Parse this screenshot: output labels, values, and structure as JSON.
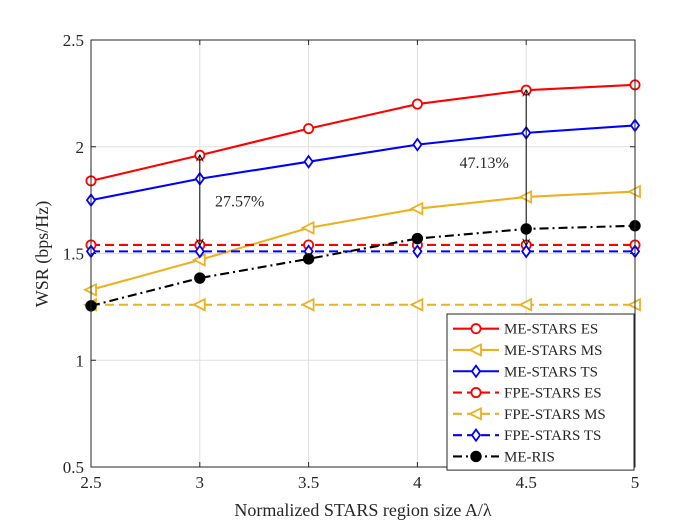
{
  "chart_data": {
    "type": "line",
    "title": "",
    "xlabel": "Normalized STARS region size A/λ",
    "ylabel": "WSR (bps/Hz)",
    "xlim": [
      2.5,
      5
    ],
    "ylim": [
      0.5,
      2.5
    ],
    "x_ticks": [
      "2.5",
      "3",
      "3.5",
      "4",
      "4.5",
      "5"
    ],
    "y_ticks": [
      "0.5",
      "1",
      "1.5",
      "2",
      "2.5"
    ],
    "grid": true,
    "legend_position": "bottom-right",
    "x": [
      2.5,
      3,
      3.5,
      4,
      4.5,
      5
    ],
    "series": [
      {
        "name": "ME-STARS ES",
        "color": "#ff0000",
        "dash": "solid",
        "marker": "circle-open",
        "values": [
          1.84,
          1.96,
          2.085,
          2.2,
          2.265,
          2.29
        ]
      },
      {
        "name": "ME-STARS MS",
        "color": "#edb120",
        "dash": "solid",
        "marker": "triangle-left",
        "values": [
          1.33,
          1.47,
          1.62,
          1.71,
          1.765,
          1.79
        ]
      },
      {
        "name": "ME-STARS TS",
        "color": "#0000ff",
        "dash": "solid",
        "marker": "diamond",
        "values": [
          1.75,
          1.85,
          1.93,
          2.01,
          2.065,
          2.1
        ]
      },
      {
        "name": "FPE-STARS ES",
        "color": "#ff0000",
        "dash": "dashed",
        "marker": "circle-open",
        "values": [
          1.54,
          1.54,
          1.54,
          1.54,
          1.54,
          1.54
        ]
      },
      {
        "name": "FPE-STARS MS",
        "color": "#edb120",
        "dash": "dashed",
        "marker": "triangle-left",
        "values": [
          1.26,
          1.26,
          1.26,
          1.26,
          1.26,
          1.26
        ]
      },
      {
        "name": "FPE-STARS TS",
        "color": "#0000ff",
        "dash": "dashed",
        "marker": "diamond",
        "values": [
          1.51,
          1.51,
          1.51,
          1.51,
          1.51,
          1.51
        ]
      },
      {
        "name": "ME-RIS",
        "color": "#000000",
        "dash": "dashdot",
        "marker": "circle-filled",
        "values": [
          1.255,
          1.385,
          1.475,
          1.57,
          1.615,
          1.63
        ]
      }
    ],
    "annotations": [
      {
        "text": "27.57%",
        "x": 3,
        "y_from": 1.54,
        "y_to": 1.96,
        "label_x": 3.07,
        "label_y": 1.72
      },
      {
        "text": "47.13%",
        "x": 4.5,
        "y_from": 1.54,
        "y_to": 2.265,
        "label_x": 4.42,
        "label_y": 1.9
      }
    ]
  }
}
